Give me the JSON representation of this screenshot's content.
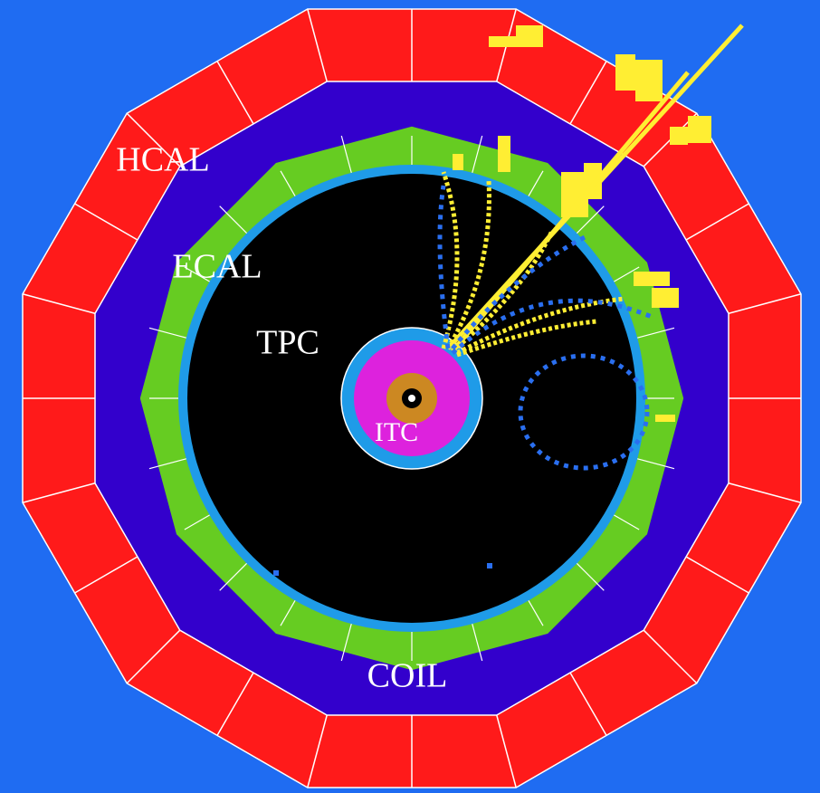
{
  "labels": {
    "hcal": "HCAL",
    "ecal": "ECAL",
    "tpc": "TPC",
    "itc": "ITC",
    "coil": "COIL"
  }
}
